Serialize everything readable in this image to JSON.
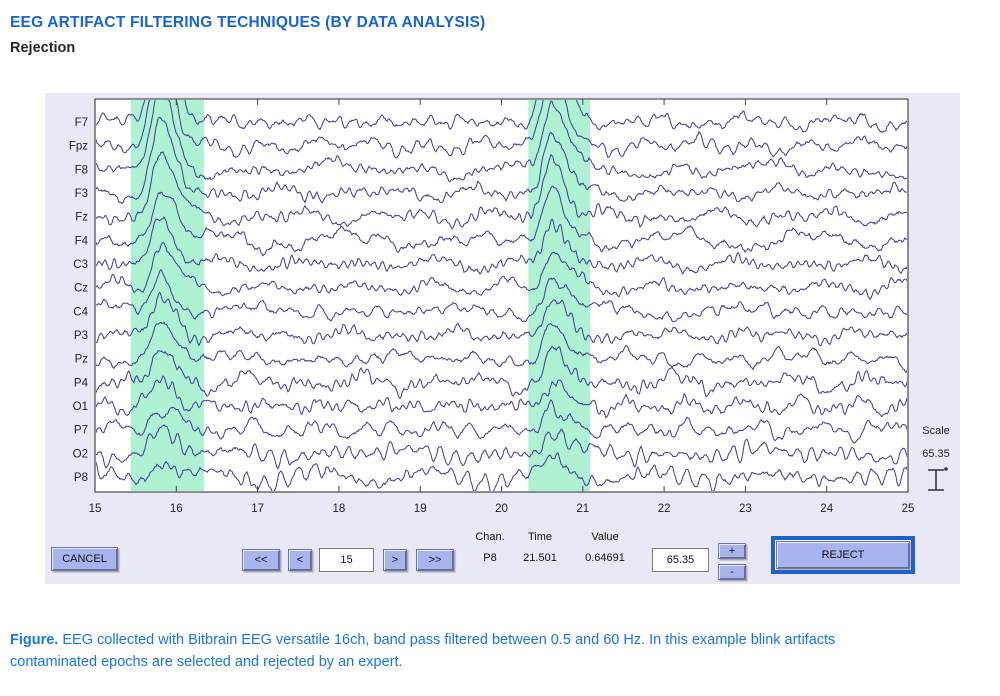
{
  "page": {
    "title": "EEG ARTIFACT FILTERING TECHNIQUES (BY DATA ANALYSIS)",
    "subtitle": "Rejection",
    "caption_lead": "Figure.",
    "caption_line1_rest": " EEG collected with Bitbrain EEG versatile 16ch, band pass filtered between 0.5 and 60 Hz. In this example blink artifacts",
    "caption_line2": "contaminated epochs are selected and rejected by an expert.",
    "title_color": "#1565d8",
    "caption_color": "#1a73e8"
  },
  "eeg_window": {
    "panel_color": "#e9e9f5",
    "trace_color": "#3c3c92",
    "highlight_color": "#aef1d3",
    "button_color": "#a9b3ee",
    "reject_outline_color": "#1d60d0",
    "channels": [
      "F7",
      "Fpz",
      "F8",
      "F3",
      "Fz",
      "F4",
      "C3",
      "Cz",
      "C4",
      "P3",
      "Pz",
      "P4",
      "O1",
      "P7",
      "O2",
      "P8"
    ],
    "x_range": [
      15,
      25
    ],
    "x_ticks": [
      15,
      16,
      17,
      18,
      19,
      20,
      21,
      22,
      23,
      24,
      25
    ],
    "highlight_regions": [
      {
        "start": 15.44,
        "end": 16.34
      },
      {
        "start": 20.33,
        "end": 21.09
      }
    ],
    "blink_events": [
      {
        "t": 15.8,
        "scale": 1.0
      },
      {
        "t": 20.62,
        "scale": 0.88
      }
    ],
    "blink_amplitudes": [
      112,
      86,
      76,
      70,
      68,
      56,
      48,
      45,
      40,
      38,
      35,
      30,
      26,
      24,
      22,
      18
    ],
    "scale": {
      "label": "Scale",
      "value": "65.35"
    },
    "controls": {
      "cancel": "CANCEL",
      "nav_first": "<<",
      "nav_prev": "<",
      "nav_value": "15",
      "nav_next": ">",
      "nav_last": ">>",
      "chan_label": "Chan.",
      "time_label": "Time",
      "value_label": "Value",
      "chan_value": "P8",
      "time_value": "21.501",
      "value_value": "0.64691",
      "scale_input": "65.35",
      "plus": "+",
      "minus": "-",
      "reject": "REJECT"
    }
  }
}
